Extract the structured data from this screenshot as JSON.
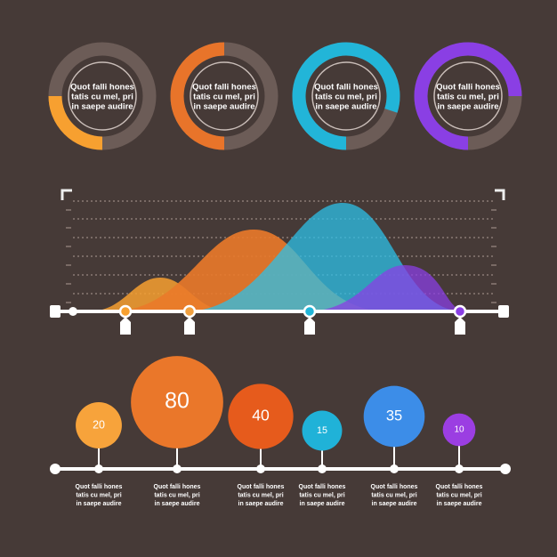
{
  "donuts": [
    {
      "lines": [
        "Quot falli hones",
        "tatis cu mel, pri",
        "in  saepe audire"
      ],
      "percent": 25,
      "color": "#f7a030"
    },
    {
      "lines": [
        "Quot falli hones",
        "tatis cu mel, pri",
        "in  saepe audire"
      ],
      "percent": 50,
      "color": "#e8742a"
    },
    {
      "lines": [
        "Quot falli hones",
        "tatis cu mel, pri",
        "in  saepe audire"
      ],
      "percent": 80,
      "color": "#22b5d8"
    },
    {
      "lines": [
        "Quot falli hones",
        "tatis cu mel, pri",
        "in  saepe audire"
      ],
      "percent": 75,
      "color": "#8a3fe4"
    }
  ],
  "bubbles": [
    {
      "value": 20,
      "color": "#f7a33b",
      "lines": [
        "Quot falli hones",
        "tatis cu mel, pri",
        "in  saepe audire"
      ]
    },
    {
      "value": 80,
      "color": "#ea772a",
      "lines": [
        "Quot falli hones",
        "tatis cu mel, pri",
        "in  saepe audire"
      ]
    },
    {
      "value": 40,
      "color": "#e65b1c",
      "lines": [
        "Quot falli hones",
        "tatis cu mel, pri",
        "in  saepe audire"
      ]
    },
    {
      "value": 15,
      "color": "#20b2d8",
      "lines": [
        "Quot falli hones",
        "tatis cu mel, pri",
        "in  saepe audire"
      ]
    },
    {
      "value": 35,
      "color": "#3c8de8",
      "lines": [
        "Quot falli hones",
        "tatis cu mel, pri",
        "in  saepe audire"
      ]
    },
    {
      "value": 10,
      "color": "#9b3ee2",
      "lines": [
        "Quot falli hones",
        "tatis cu mel, pri",
        "in  saepe audire"
      ]
    }
  ]
}
